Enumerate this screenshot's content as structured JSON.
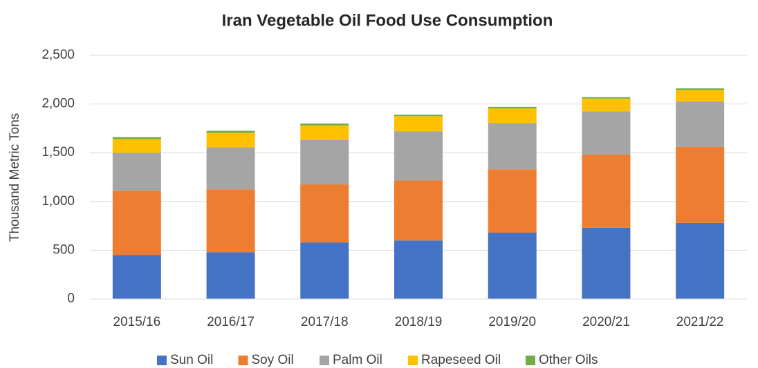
{
  "chart_data": {
    "type": "stacked_bar",
    "title": "Iran Vegetable Oil Food Use Consumption",
    "y_label": "Thousand Metric Tons",
    "categories": [
      "2015/16",
      "2016/17",
      "2017/18",
      "2018/19",
      "2019/20",
      "2020/21",
      "2021/22"
    ],
    "series": [
      {
        "name": "Sun Oil",
        "color": "#4472c4",
        "values": [
          450,
          480,
          580,
          600,
          680,
          730,
          780
        ]
      },
      {
        "name": "Soy Oil",
        "color": "#ed7d31",
        "values": [
          660,
          645,
          595,
          615,
          650,
          750,
          780
        ]
      },
      {
        "name": "Palm Oil",
        "color": "#a5a5a5",
        "values": [
          390,
          430,
          455,
          505,
          475,
          445,
          465
        ]
      },
      {
        "name": "Rapeseed Oil",
        "color": "#ffc000",
        "values": [
          140,
          150,
          150,
          155,
          150,
          130,
          120
        ]
      },
      {
        "name": "Other Oils",
        "color": "#70ad47",
        "values": [
          20,
          20,
          20,
          15,
          15,
          15,
          15
        ]
      }
    ],
    "ylim": [
      0,
      2500
    ],
    "yticks": [
      0,
      500,
      {
        "value": 1000,
        "label": "1,000"
      },
      {
        "value": 1500,
        "label": "1,500"
      },
      {
        "value": 2000,
        "label": "2,000"
      },
      {
        "value": 2500,
        "label": "2,500"
      }
    ],
    "grid": true,
    "legend": "bottom"
  }
}
